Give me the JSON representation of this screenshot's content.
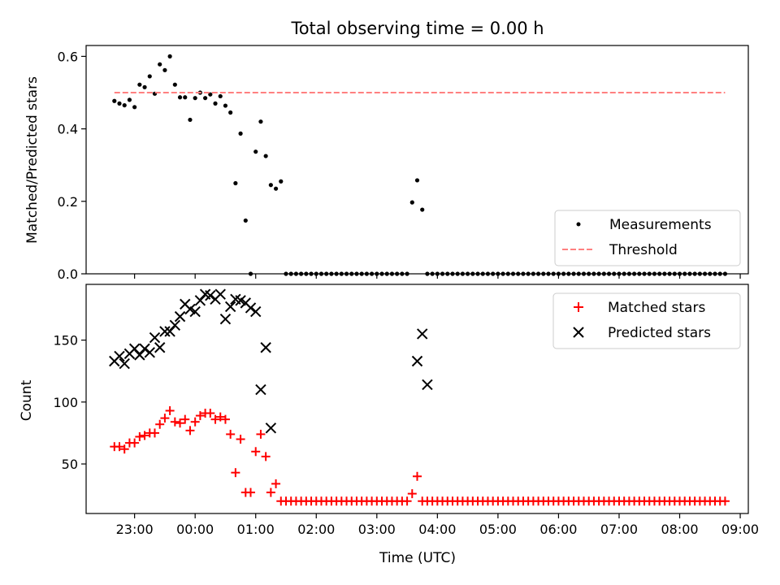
{
  "chart_data": [
    {
      "type": "scatter",
      "title": "Total observing time = 0.00 h",
      "xlabel": "",
      "ylabel": "Matched/Predicted stars",
      "ylim": [
        0,
        0.63
      ],
      "xlim": [
        "22:12",
        "09:08"
      ],
      "y_ticks": [
        "0.0",
        "0.2",
        "0.4",
        "0.6"
      ],
      "x_ticks_shown": false,
      "legend_position": "bottom-right",
      "series": [
        {
          "name": "Measurements",
          "marker": "dot",
          "color": "#000000",
          "x": [
            "22:40",
            "22:45",
            "22:50",
            "22:55",
            "23:00",
            "23:05",
            "23:10",
            "23:15",
            "23:20",
            "23:25",
            "23:30",
            "23:35",
            "23:40",
            "23:45",
            "23:50",
            "23:55",
            "00:00",
            "00:05",
            "00:10",
            "00:15",
            "00:20",
            "00:25",
            "00:30",
            "00:35",
            "00:40",
            "00:45",
            "00:50",
            "00:55",
            "01:00",
            "01:05",
            "01:10",
            "01:15",
            "01:20",
            "01:25",
            "01:30",
            "01:35",
            "01:40",
            "01:45",
            "01:50",
            "01:55",
            "02:00",
            "02:05",
            "02:10",
            "02:15",
            "02:20",
            "02:25",
            "02:30",
            "02:35",
            "02:40",
            "02:45",
            "02:50",
            "02:55",
            "03:00",
            "03:05",
            "03:10",
            "03:15",
            "03:20",
            "03:25",
            "03:30",
            "03:35",
            "03:40",
            "03:45",
            "03:50",
            "03:55",
            "04:00",
            "04:05",
            "04:10",
            "04:15",
            "04:20",
            "04:25",
            "04:30",
            "04:35",
            "04:40",
            "04:45",
            "04:50",
            "04:55",
            "05:00",
            "05:05",
            "05:10",
            "05:15",
            "05:20",
            "05:25",
            "05:30",
            "05:35",
            "05:40",
            "05:45",
            "05:50",
            "05:55",
            "06:00",
            "06:05",
            "06:10",
            "06:15",
            "06:20",
            "06:25",
            "06:30",
            "06:35",
            "06:40",
            "06:45",
            "06:50",
            "06:55",
            "07:00",
            "07:05",
            "07:10",
            "07:15",
            "07:20",
            "07:25",
            "07:30",
            "07:35",
            "07:40",
            "07:45",
            "07:50",
            "07:55",
            "08:00",
            "08:05",
            "08:10",
            "08:15",
            "08:20",
            "08:25",
            "08:30",
            "08:35",
            "08:40",
            "08:45"
          ],
          "y": [
            0.477,
            0.47,
            0.465,
            0.48,
            0.46,
            0.522,
            0.515,
            0.545,
            0.497,
            0.578,
            0.562,
            0.6,
            0.522,
            0.487,
            0.487,
            0.425,
            0.485,
            0.5,
            0.485,
            0.495,
            0.47,
            0.49,
            0.464,
            0.445,
            0.25,
            0.387,
            0.147,
            0,
            0.337,
            0.42,
            0.325,
            0.245,
            0.235,
            0.255,
            0,
            0,
            0,
            0,
            0,
            0,
            0,
            0,
            0,
            0,
            0,
            0,
            0,
            0,
            0,
            0,
            0,
            0,
            0,
            0,
            0,
            0,
            0,
            0,
            0,
            0.197,
            0.258,
            0.177,
            0,
            0,
            0,
            0,
            0,
            0,
            0,
            0,
            0,
            0,
            0,
            0,
            0,
            0,
            0,
            0,
            0,
            0,
            0,
            0,
            0,
            0,
            0,
            0,
            0,
            0,
            0,
            0,
            0,
            0,
            0,
            0,
            0,
            0,
            0,
            0,
            0,
            0,
            0,
            0,
            0,
            0,
            0,
            0,
            0,
            0,
            0,
            0,
            0,
            0,
            0,
            0,
            0,
            0,
            0,
            0,
            0,
            0,
            0,
            0
          ]
        },
        {
          "name": "Threshold",
          "marker": "dashed-line",
          "color": "#ff8080",
          "x": [
            "22:40",
            "08:45"
          ],
          "y": [
            0.5,
            0.5
          ]
        }
      ]
    },
    {
      "type": "scatter",
      "title": "",
      "xlabel": "Time (UTC)",
      "ylabel": "Count",
      "ylim": [
        10,
        195
      ],
      "xlim": [
        "22:12",
        "09:08"
      ],
      "y_ticks": [
        "50",
        "100",
        "150"
      ],
      "x_ticks": [
        "23:00",
        "00:00",
        "01:00",
        "02:00",
        "03:00",
        "04:00",
        "05:00",
        "06:00",
        "07:00",
        "08:00",
        "09:00"
      ],
      "legend_position": "top-right",
      "series": [
        {
          "name": "Matched stars",
          "marker": "plus",
          "color": "#ff0000",
          "x": [
            "22:40",
            "22:45",
            "22:50",
            "22:55",
            "23:00",
            "23:05",
            "23:10",
            "23:15",
            "23:20",
            "23:25",
            "23:30",
            "23:35",
            "23:40",
            "23:45",
            "23:50",
            "23:55",
            "00:00",
            "00:05",
            "00:10",
            "00:15",
            "00:20",
            "00:25",
            "00:30",
            "00:35",
            "00:40",
            "00:45",
            "00:50",
            "00:55",
            "01:00",
            "01:05",
            "01:10",
            "01:15",
            "01:20",
            "01:25",
            "01:30",
            "01:35",
            "01:40",
            "01:45",
            "01:50",
            "01:55",
            "02:00",
            "02:05",
            "02:10",
            "02:15",
            "02:20",
            "02:25",
            "02:30",
            "02:35",
            "02:40",
            "02:45",
            "02:50",
            "02:55",
            "03:00",
            "03:05",
            "03:10",
            "03:15",
            "03:20",
            "03:25",
            "03:30",
            "03:35",
            "03:40",
            "03:45",
            "03:50",
            "03:55",
            "04:00",
            "04:05",
            "04:10",
            "04:15",
            "04:20",
            "04:25",
            "04:30",
            "04:35",
            "04:40",
            "04:45",
            "04:50",
            "04:55",
            "05:00",
            "05:05",
            "05:10",
            "05:15",
            "05:20",
            "05:25",
            "05:30",
            "05:35",
            "05:40",
            "05:45",
            "05:50",
            "05:55",
            "06:00",
            "06:05",
            "06:10",
            "06:15",
            "06:20",
            "06:25",
            "06:30",
            "06:35",
            "06:40",
            "06:45",
            "06:50",
            "06:55",
            "07:00",
            "07:05",
            "07:10",
            "07:15",
            "07:20",
            "07:25",
            "07:30",
            "07:35",
            "07:40",
            "07:45",
            "07:50",
            "07:55",
            "08:00",
            "08:05",
            "08:10",
            "08:15",
            "08:20",
            "08:25",
            "08:30",
            "08:35",
            "08:40",
            "08:45"
          ],
          "y": [
            64,
            64,
            62,
            67,
            67,
            72,
            73,
            75,
            75,
            82,
            87,
            93,
            84,
            83,
            86,
            77,
            84,
            89,
            91,
            91,
            86,
            88,
            86,
            74,
            43,
            70,
            27,
            27,
            60,
            74,
            56,
            27,
            34,
            20,
            20,
            20,
            20,
            20,
            20,
            20,
            20,
            20,
            20,
            20,
            20,
            20,
            20,
            20,
            20,
            20,
            20,
            20,
            20,
            20,
            20,
            20,
            20,
            20,
            20,
            26,
            40,
            20,
            20,
            20,
            20,
            20,
            20,
            20,
            20,
            20,
            20,
            20,
            20,
            20,
            20,
            20,
            20,
            20,
            20,
            20,
            20,
            20,
            20,
            20,
            20,
            20,
            20,
            20,
            20,
            20,
            20,
            20,
            20,
            20,
            20,
            20,
            20,
            20,
            20,
            20,
            20,
            20,
            20,
            20,
            20,
            20,
            20,
            20,
            20,
            20,
            20,
            20,
            20,
            20,
            20,
            20,
            20,
            20,
            20,
            20,
            20,
            20
          ]
        },
        {
          "name": "Predicted stars",
          "marker": "x",
          "color": "#000000",
          "x": [
            "22:40",
            "22:45",
            "22:50",
            "22:55",
            "23:00",
            "23:05",
            "23:10",
            "23:15",
            "23:20",
            "23:25",
            "23:30",
            "23:35",
            "23:40",
            "23:45",
            "23:50",
            "23:55",
            "00:00",
            "00:05",
            "00:10",
            "00:15",
            "00:20",
            "00:25",
            "00:30",
            "00:35",
            "00:40",
            "00:45",
            "00:50",
            "00:55",
            "01:00",
            "01:05",
            "01:10",
            "01:15",
            "01:20",
            "01:25",
            "03:40",
            "03:45",
            "03:50"
          ],
          "y": [
            133,
            137,
            131,
            139,
            143,
            138,
            143,
            140,
            152,
            144,
            157,
            157,
            162,
            169,
            179,
            175,
            173,
            182,
            187,
            186,
            183,
            187,
            167,
            177,
            183,
            182,
            180,
            176,
            173,
            110,
            144,
            79,
            null,
            null,
            133,
            155,
            114
          ]
        }
      ]
    }
  ]
}
